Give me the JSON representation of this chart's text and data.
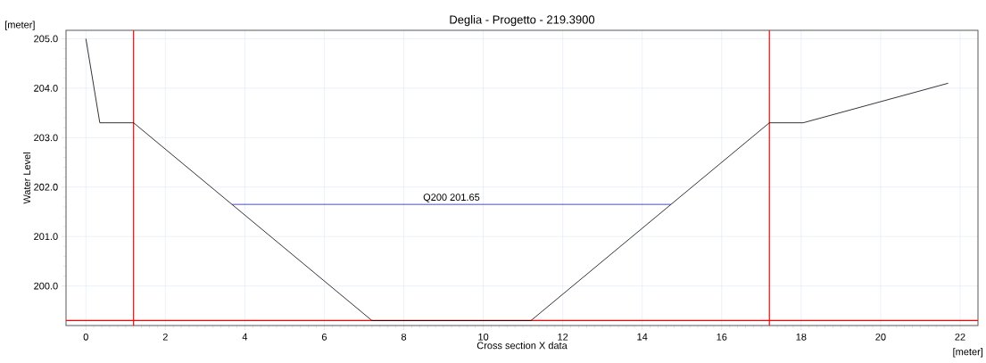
{
  "chart_data": {
    "type": "line",
    "title": "Deglia - Progetto - 219.3900",
    "xlabel": "Cross section X data",
    "ylabel": "Water Level",
    "xlim": [
      -0.5,
      22.45
    ],
    "ylim": [
      199.2,
      205.17
    ],
    "xticks": [
      0,
      2,
      4,
      6,
      8,
      10,
      12,
      14,
      16,
      18,
      20,
      22
    ],
    "yticks": [
      {
        "value": 200,
        "label": "200.0"
      },
      {
        "value": 201,
        "label": "201.0"
      },
      {
        "value": 202,
        "label": "202.0"
      },
      {
        "value": 203,
        "label": "203.0"
      },
      {
        "value": 204,
        "label": "204.0"
      },
      {
        "value": 205,
        "label": "205.0"
      }
    ],
    "grid": true,
    "marker": "none",
    "line_style": "solid",
    "series": [
      {
        "color": "#000000",
        "x": [
          0,
          0.35,
          1.2,
          7.2,
          11.2,
          17.2,
          18.05,
          21.7
        ],
        "values": [
          205.0,
          203.3,
          203.3,
          199.3,
          199.3,
          203.3,
          203.3,
          204.1
        ]
      },
      {
        "color": "#2020c0",
        "x": [
          3.675,
          14.725
        ],
        "values": [
          201.65,
          201.65
        ]
      }
    ],
    "ref_lines": [
      {
        "axis": "x",
        "value": 1.2,
        "color": "#ff0000"
      },
      {
        "axis": "x",
        "value": 17.2,
        "color": "#ff0000"
      },
      {
        "axis": "y",
        "value": 199.3,
        "color": "#ff0000"
      }
    ],
    "annotations": [
      {
        "text": "Q200  201.65",
        "x": 9.2,
        "y": 201.65
      },
      "[meter]",
      "[meter]"
    ]
  }
}
